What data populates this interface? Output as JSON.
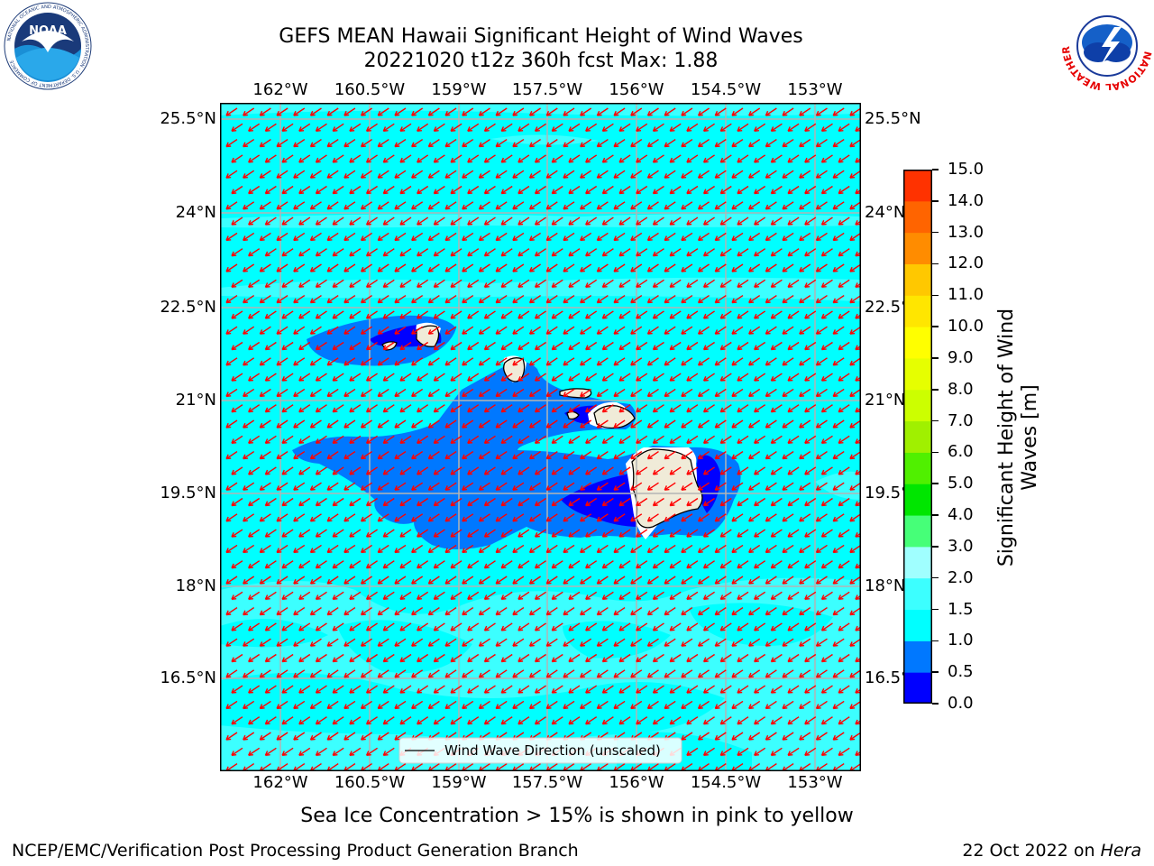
{
  "header": {
    "title_line1": "GEFS MEAN Hawaii Significant Height of Wind Waves",
    "title_line2": "20221020 t12z 360h fcst   Max: 1.88"
  },
  "logos": {
    "left": {
      "name": "noaa-logo",
      "text": "NOAA",
      "ring_text": "NATIONAL OCEANIC AND ATMOSPHERIC ADMINISTRATION · U.S. DEPARTMENT OF COMMERCE"
    },
    "right": {
      "name": "nws-logo",
      "ring_text": "NATIONAL WEATHER SERVICE"
    }
  },
  "map": {
    "lon_ticks": [
      "162°W",
      "160.5°W",
      "159°W",
      "157.5°W",
      "156°W",
      "154.5°W",
      "153°W"
    ],
    "lat_ticks": [
      "25.5°N",
      "24°N",
      "22.5°N",
      "21°N",
      "19.5°N",
      "18°N",
      "16.5°N"
    ],
    "legend_label": "Wind Wave Direction (unscaled)",
    "ocean_color": "#00ffff",
    "land_color": "#f0ebd8",
    "arrow_color": "#ff0000",
    "grid_color": "#b4b4b4"
  },
  "colorbar": {
    "label": "Significant Height of Wind Waves [m]",
    "label_line1": "Significant Height of Wind",
    "label_line2": "Waves [m]",
    "ticks": [
      "15.0",
      "14.0",
      "13.0",
      "12.0",
      "11.0",
      "10.0",
      "9.0",
      "8.0",
      "7.0",
      "6.0",
      "5.0",
      "4.0",
      "3.0",
      "2.0",
      "1.5",
      "1.0",
      "0.5",
      "0.0"
    ],
    "colors": [
      "#0000ff",
      "#0078ff",
      "#00ffff",
      "#3cffff",
      "#a0ffff",
      "#46ff78",
      "#00e600",
      "#50f000",
      "#a0f000",
      "#ccff00",
      "#e6ff00",
      "#ffff00",
      "#ffe600",
      "#ffc800",
      "#ff8c00",
      "#ff6400",
      "#ff3200",
      "#ff0000"
    ]
  },
  "footer": {
    "note": "Sea Ice Concentration > 15% is shown in pink to yellow",
    "org": "NCEP/EMC/Verification Post Processing Product Generation Branch",
    "date": "22 Oct 2022 on ",
    "machine": "Hera"
  }
}
